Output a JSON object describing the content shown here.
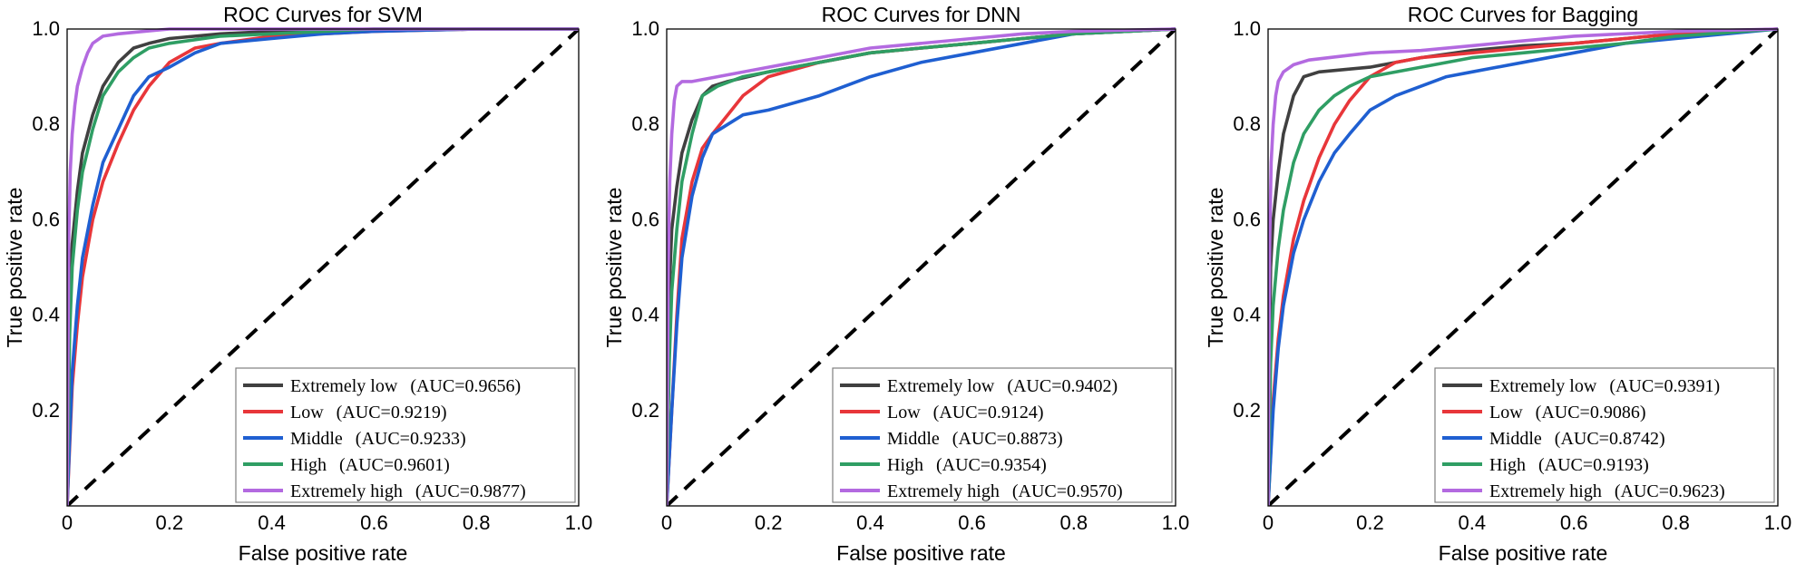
{
  "chart_data": [
    {
      "type": "line",
      "title": "ROC Curves for SVM",
      "xlabel": "False positive rate",
      "ylabel": "True positive rate",
      "xlim": [
        0,
        1
      ],
      "ylim": [
        0,
        1
      ],
      "xticks": [
        "0",
        "0.2",
        "0.4",
        "0.6",
        "0.8",
        "1.0"
      ],
      "yticks": [
        "0.2",
        "0.4",
        "0.6",
        "0.8",
        "1.0"
      ],
      "grid": false,
      "legend_position": "bottom-right",
      "diagonal": "dashed black reference line",
      "series": [
        {
          "name": "Extremely low",
          "auc_label": "(AUC=0.9656)",
          "color": "#404040",
          "x": [
            0,
            0.005,
            0.01,
            0.02,
            0.03,
            0.05,
            0.07,
            0.1,
            0.13,
            0.16,
            0.2,
            0.3,
            0.4,
            0.6,
            0.8,
            1.0
          ],
          "y": [
            0,
            0.42,
            0.55,
            0.66,
            0.74,
            0.82,
            0.88,
            0.93,
            0.96,
            0.97,
            0.98,
            0.99,
            0.995,
            1.0,
            1.0,
            1.0
          ]
        },
        {
          "name": "Low",
          "auc_label": "(AUC=0.9219)",
          "color": "#e8363a",
          "x": [
            0,
            0.01,
            0.02,
            0.03,
            0.05,
            0.07,
            0.1,
            0.13,
            0.16,
            0.2,
            0.25,
            0.3,
            0.4,
            0.5,
            0.6,
            0.8,
            1.0
          ],
          "y": [
            0,
            0.25,
            0.38,
            0.48,
            0.6,
            0.68,
            0.76,
            0.83,
            0.88,
            0.93,
            0.96,
            0.97,
            0.985,
            0.99,
            0.995,
            1.0,
            1.0
          ]
        },
        {
          "name": "Middle",
          "auc_label": "(AUC=0.9233)",
          "color": "#1f5fd1",
          "x": [
            0,
            0.01,
            0.02,
            0.03,
            0.05,
            0.07,
            0.1,
            0.13,
            0.16,
            0.2,
            0.25,
            0.3,
            0.4,
            0.5,
            0.6,
            0.8,
            1.0
          ],
          "y": [
            0,
            0.28,
            0.42,
            0.52,
            0.63,
            0.72,
            0.79,
            0.86,
            0.9,
            0.92,
            0.95,
            0.97,
            0.98,
            0.99,
            0.995,
            1.0,
            1.0
          ]
        },
        {
          "name": "High",
          "auc_label": "(AUC=0.9601)",
          "color": "#2f9e64",
          "x": [
            0,
            0.005,
            0.01,
            0.02,
            0.03,
            0.05,
            0.07,
            0.1,
            0.13,
            0.16,
            0.2,
            0.3,
            0.4,
            0.6,
            0.8,
            1.0
          ],
          "y": [
            0,
            0.36,
            0.5,
            0.62,
            0.7,
            0.79,
            0.86,
            0.91,
            0.94,
            0.96,
            0.97,
            0.985,
            0.99,
            1.0,
            1.0,
            1.0
          ]
        },
        {
          "name": "Extremely high",
          "auc_label": "(AUC=0.9877)",
          "color": "#b36ae0",
          "x": [
            0,
            0.003,
            0.006,
            0.01,
            0.015,
            0.02,
            0.03,
            0.04,
            0.05,
            0.07,
            0.1,
            0.15,
            0.2,
            0.4,
            0.7,
            1.0
          ],
          "y": [
            0,
            0.55,
            0.7,
            0.78,
            0.84,
            0.88,
            0.92,
            0.95,
            0.97,
            0.985,
            0.99,
            0.995,
            1.0,
            1.0,
            1.0,
            1.0
          ]
        }
      ]
    },
    {
      "type": "line",
      "title": "ROC Curves for DNN",
      "xlabel": "False positive rate",
      "ylabel": "True positive rate",
      "xlim": [
        0,
        1
      ],
      "ylim": [
        0,
        1
      ],
      "xticks": [
        "0",
        "0.2",
        "0.4",
        "0.6",
        "0.8",
        "1.0"
      ],
      "yticks": [
        "0.2",
        "0.4",
        "0.6",
        "0.8",
        "1.0"
      ],
      "grid": false,
      "legend_position": "bottom-right",
      "diagonal": "dashed black reference line",
      "series": [
        {
          "name": "Extremely low",
          "auc_label": "(AUC=0.9402)",
          "color": "#404040",
          "x": [
            0,
            0.005,
            0.01,
            0.02,
            0.03,
            0.05,
            0.07,
            0.09,
            0.12,
            0.2,
            0.3,
            0.4,
            0.5,
            0.6,
            0.7,
            0.8,
            1.0
          ],
          "y": [
            0,
            0.45,
            0.58,
            0.67,
            0.74,
            0.81,
            0.86,
            0.88,
            0.89,
            0.91,
            0.93,
            0.95,
            0.96,
            0.97,
            0.98,
            0.99,
            1.0
          ]
        },
        {
          "name": "Low",
          "auc_label": "(AUC=0.9124)",
          "color": "#e8363a",
          "x": [
            0,
            0.01,
            0.02,
            0.03,
            0.05,
            0.07,
            0.09,
            0.12,
            0.15,
            0.2,
            0.3,
            0.4,
            0.5,
            0.6,
            0.7,
            0.8,
            1.0
          ],
          "y": [
            0,
            0.2,
            0.4,
            0.56,
            0.68,
            0.75,
            0.78,
            0.82,
            0.86,
            0.9,
            0.93,
            0.95,
            0.96,
            0.97,
            0.98,
            0.99,
            1.0
          ]
        },
        {
          "name": "Middle",
          "auc_label": "(AUC=0.8873)",
          "color": "#1f5fd1",
          "x": [
            0,
            0.01,
            0.02,
            0.03,
            0.05,
            0.07,
            0.09,
            0.12,
            0.15,
            0.2,
            0.3,
            0.4,
            0.5,
            0.6,
            0.7,
            0.8,
            1.0
          ],
          "y": [
            0,
            0.2,
            0.38,
            0.52,
            0.65,
            0.73,
            0.78,
            0.8,
            0.82,
            0.83,
            0.86,
            0.9,
            0.93,
            0.95,
            0.97,
            0.99,
            1.0
          ]
        },
        {
          "name": "High",
          "auc_label": "(AUC=0.9354)",
          "color": "#2f9e64",
          "x": [
            0,
            0.005,
            0.01,
            0.02,
            0.03,
            0.05,
            0.07,
            0.1,
            0.15,
            0.2,
            0.3,
            0.4,
            0.5,
            0.6,
            0.7,
            0.8,
            1.0
          ],
          "y": [
            0,
            0.3,
            0.45,
            0.58,
            0.68,
            0.78,
            0.86,
            0.88,
            0.9,
            0.91,
            0.93,
            0.95,
            0.96,
            0.97,
            0.98,
            0.99,
            1.0
          ]
        },
        {
          "name": "Extremely high",
          "auc_label": "(AUC=0.9570)",
          "color": "#b36ae0",
          "x": [
            0,
            0.003,
            0.006,
            0.01,
            0.015,
            0.02,
            0.03,
            0.05,
            0.1,
            0.2,
            0.3,
            0.4,
            0.5,
            0.6,
            0.7,
            0.8,
            1.0
          ],
          "y": [
            0,
            0.5,
            0.68,
            0.78,
            0.85,
            0.88,
            0.89,
            0.89,
            0.9,
            0.92,
            0.94,
            0.96,
            0.97,
            0.98,
            0.99,
            0.995,
            1.0
          ]
        }
      ]
    },
    {
      "type": "line",
      "title": "ROC Curves for Bagging",
      "xlabel": "False positive rate",
      "ylabel": "True positive rate",
      "xlim": [
        0,
        1
      ],
      "ylim": [
        0,
        1
      ],
      "xticks": [
        "0",
        "0.2",
        "0.4",
        "0.6",
        "0.8",
        "1.0"
      ],
      "yticks": [
        "0.2",
        "0.4",
        "0.6",
        "0.8",
        "1.0"
      ],
      "grid": false,
      "legend_position": "bottom-right",
      "diagonal": "dashed black reference line",
      "series": [
        {
          "name": "Extremely low",
          "auc_label": "(AUC=0.9391)",
          "color": "#404040",
          "x": [
            0,
            0.005,
            0.01,
            0.02,
            0.03,
            0.05,
            0.07,
            0.1,
            0.15,
            0.2,
            0.3,
            0.4,
            0.5,
            0.6,
            0.7,
            0.8,
            1.0
          ],
          "y": [
            0,
            0.5,
            0.6,
            0.7,
            0.78,
            0.86,
            0.9,
            0.91,
            0.915,
            0.92,
            0.94,
            0.955,
            0.965,
            0.97,
            0.98,
            0.99,
            1.0
          ]
        },
        {
          "name": "Low",
          "auc_label": "(AUC=0.9086)",
          "color": "#e8363a",
          "x": [
            0,
            0.01,
            0.02,
            0.03,
            0.05,
            0.07,
            0.1,
            0.13,
            0.16,
            0.2,
            0.25,
            0.3,
            0.4,
            0.5,
            0.6,
            0.7,
            0.8,
            1.0
          ],
          "y": [
            0,
            0.22,
            0.35,
            0.44,
            0.56,
            0.64,
            0.73,
            0.8,
            0.85,
            0.9,
            0.93,
            0.94,
            0.95,
            0.96,
            0.97,
            0.98,
            0.99,
            1.0
          ]
        },
        {
          "name": "Middle",
          "auc_label": "(AUC=0.8742)",
          "color": "#1f5fd1",
          "x": [
            0,
            0.01,
            0.02,
            0.03,
            0.05,
            0.07,
            0.1,
            0.13,
            0.16,
            0.2,
            0.25,
            0.3,
            0.35,
            0.4,
            0.5,
            0.6,
            0.7,
            0.8,
            1.0
          ],
          "y": [
            0,
            0.2,
            0.33,
            0.42,
            0.53,
            0.6,
            0.68,
            0.74,
            0.78,
            0.83,
            0.86,
            0.88,
            0.9,
            0.91,
            0.93,
            0.95,
            0.97,
            0.98,
            1.0
          ]
        },
        {
          "name": "High",
          "auc_label": "(AUC=0.9193)",
          "color": "#2f9e64",
          "x": [
            0,
            0.005,
            0.01,
            0.02,
            0.03,
            0.05,
            0.07,
            0.1,
            0.13,
            0.16,
            0.2,
            0.3,
            0.4,
            0.5,
            0.6,
            0.7,
            0.8,
            1.0
          ],
          "y": [
            0,
            0.3,
            0.42,
            0.54,
            0.62,
            0.72,
            0.78,
            0.83,
            0.86,
            0.88,
            0.9,
            0.92,
            0.94,
            0.95,
            0.96,
            0.97,
            0.985,
            1.0
          ]
        },
        {
          "name": "Extremely high",
          "auc_label": "(AUC=0.9623)",
          "color": "#b36ae0",
          "x": [
            0,
            0.003,
            0.006,
            0.01,
            0.015,
            0.02,
            0.03,
            0.05,
            0.08,
            0.12,
            0.2,
            0.3,
            0.4,
            0.5,
            0.6,
            0.8,
            1.0
          ],
          "y": [
            0,
            0.55,
            0.72,
            0.8,
            0.86,
            0.89,
            0.91,
            0.925,
            0.935,
            0.94,
            0.95,
            0.955,
            0.965,
            0.975,
            0.985,
            0.995,
            1.0
          ]
        }
      ]
    }
  ]
}
